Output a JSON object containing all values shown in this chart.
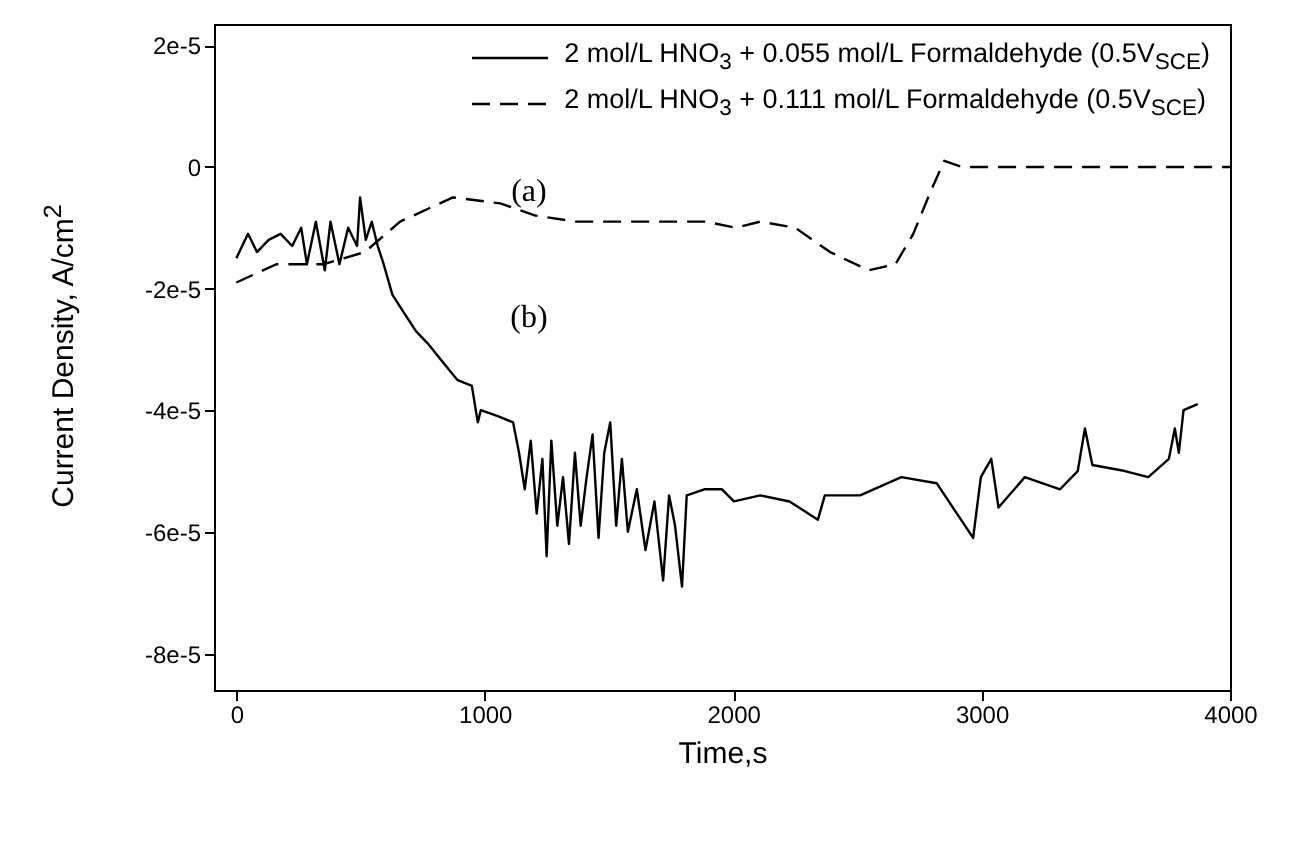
{
  "chart_data": {
    "type": "line",
    "xlabel": "Time,s",
    "ylabel": "Current Density, A/cm$^{2}$",
    "xlim": [
      -90,
      4000
    ],
    "xticks": [
      0,
      1000,
      2000,
      3000,
      4000
    ],
    "ylim": [
      -8.6e-05,
      2.35e-05
    ],
    "yticks": [
      {
        "value": 2e-05,
        "label": "2e-5"
      },
      0,
      {
        "value": -2e-05,
        "label": "-2e-5"
      },
      {
        "value": -4e-05,
        "label": "-4e-5"
      },
      {
        "value": -6e-05,
        "label": "-6e-5"
      },
      {
        "value": -8e-05,
        "label": "-8e-5"
      }
    ],
    "legend": "top right",
    "marker": "none",
    "annotations": [
      "(a)",
      "(b)"
    ],
    "series": [
      {
        "name": "2 mol/L HNO$_{3}$ + 0.055 mol/L Formaldehyde (0.5V$_{SCE}$)",
        "color": "#000000",
        "line_style": "solid",
        "x": [
          0,
          47,
          83,
          130,
          178,
          225,
          261,
          284,
          320,
          356,
          379,
          415,
          450,
          486,
          498,
          521,
          545,
          569,
          593,
          628,
          675,
          723,
          770,
          829,
          889,
          948,
          972,
          984,
          1055,
          1114,
          1138,
          1161,
          1185,
          1209,
          1232,
          1249,
          1268,
          1292,
          1315,
          1339,
          1363,
          1386,
          1410,
          1434,
          1458,
          1481,
          1505,
          1529,
          1552,
          1576,
          1612,
          1647,
          1683,
          1718,
          1742,
          1766,
          1794,
          1813,
          1884,
          1955,
          2003,
          2109,
          2227,
          2341,
          2369,
          2511,
          2677,
          2819,
          2966,
          2997,
          3039,
          3068,
          3174,
          3316,
          3387,
          3416,
          3446,
          3577,
          3671,
          3754,
          3778,
          3794,
          3813,
          3870
        ],
        "values": [
          -1.5e-05,
          -1.1e-05,
          -1.4e-05,
          -1.2e-05,
          -1.1e-05,
          -1.3e-05,
          -1e-05,
          -1.6e-05,
          -9e-06,
          -1.7e-05,
          -9e-06,
          -1.6e-05,
          -1e-05,
          -1.3e-05,
          -5e-06,
          -1.2e-05,
          -9e-06,
          -1.3e-05,
          -1.6e-05,
          -2.1e-05,
          -2.4e-05,
          -2.7e-05,
          -2.9e-05,
          -3.2e-05,
          -3.5e-05,
          -3.6e-05,
          -4.2e-05,
          -4e-05,
          -4.1e-05,
          -4.2e-05,
          -4.7e-05,
          -5.3e-05,
          -4.5e-05,
          -5.7e-05,
          -4.8e-05,
          -6.4e-05,
          -4.5e-05,
          -5.9e-05,
          -5.1e-05,
          -6.2e-05,
          -4.7e-05,
          -5.9e-05,
          -5.1e-05,
          -4.4e-05,
          -6.1e-05,
          -4.7e-05,
          -4.2e-05,
          -5.9e-05,
          -4.8e-05,
          -6e-05,
          -5.3e-05,
          -6.3e-05,
          -5.5e-05,
          -6.8e-05,
          -5.4e-05,
          -5.9e-05,
          -6.9e-05,
          -5.4e-05,
          -5.3e-05,
          -5.3e-05,
          -5.5e-05,
          -5.4e-05,
          -5.5e-05,
          -5.8e-05,
          -5.4e-05,
          -5.4e-05,
          -5.1e-05,
          -5.2e-05,
          -6.1e-05,
          -5.1e-05,
          -4.8e-05,
          -5.6e-05,
          -5.1e-05,
          -5.3e-05,
          -5e-05,
          -4.3e-05,
          -4.9e-05,
          -5e-05,
          -5.1e-05,
          -4.8e-05,
          -4.3e-05,
          -4.7e-05,
          -4e-05,
          -3.9e-05
        ]
      },
      {
        "name": "2 mol/L HNO$_{3}$ + 0.111 mol/L Formaldehyde (0.5V$_{SCE}$)",
        "color": "#000000",
        "line_style": "dashed",
        "x": [
          0,
          161,
          350,
          517,
          659,
          872,
          1062,
          1204,
          1370,
          1536,
          1725,
          1891,
          2010,
          2109,
          2250,
          2390,
          2545,
          2653,
          2725,
          2795,
          2850,
          2920,
          4000
        ],
        "values": [
          -1.9e-05,
          -1.6e-05,
          -1.6e-05,
          -1.4e-05,
          -9e-06,
          -5e-06,
          -6e-06,
          -8e-06,
          -9e-06,
          -9e-06,
          -9e-06,
          -9e-06,
          -1e-05,
          -9e-06,
          -1e-05,
          -1.4e-05,
          -1.7e-05,
          -1.6e-05,
          -1.1e-05,
          -4e-06,
          1e-06,
          0,
          0
        ]
      }
    ]
  }
}
